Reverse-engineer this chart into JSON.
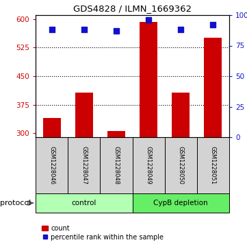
{
  "title": "GDS4828 / ILMN_1669362",
  "samples": [
    "GSM1228046",
    "GSM1228047",
    "GSM1228048",
    "GSM1228049",
    "GSM1228050",
    "GSM1228051"
  ],
  "counts": [
    340,
    407,
    307,
    592,
    407,
    550
  ],
  "percentiles": [
    88,
    88,
    87,
    96,
    88,
    92
  ],
  "bar_color": "#CC0000",
  "dot_color": "#1111CC",
  "ylim_left": [
    290,
    610
  ],
  "yticks_left": [
    300,
    375,
    450,
    525,
    600
  ],
  "ylim_right": [
    0,
    100
  ],
  "yticks_right": [
    0,
    25,
    50,
    75,
    100
  ],
  "ytick_labels_right": [
    "0",
    "25",
    "50",
    "75",
    "100%"
  ],
  "bar_width": 0.55,
  "figsize": [
    3.61,
    3.63
  ],
  "dpi": 100,
  "sample_box_color": "#d3d3d3",
  "control_color": "#b3ffb3",
  "cypb_color": "#66ee66",
  "legend_count_label": "count",
  "legend_pct_label": "percentile rank within the sample"
}
